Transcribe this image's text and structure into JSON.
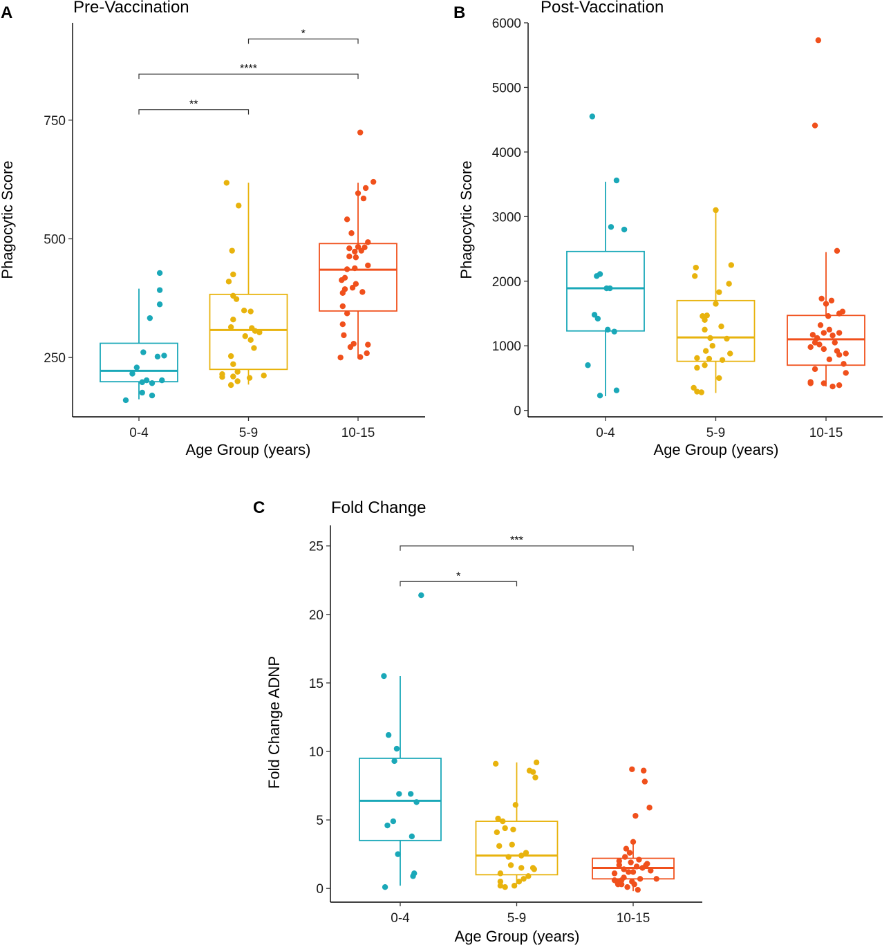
{
  "chart_data": [
    {
      "type": "boxplot",
      "panel": "A",
      "title": "Pre-Vaccination",
      "xlabel": "Age Group (years)",
      "ylabel": "Phagocytic Score",
      "categories": [
        "0-4",
        "5-9",
        "10-15"
      ],
      "ylim": [
        125,
        955
      ],
      "yticks": [
        250,
        500,
        750
      ],
      "colors": [
        "#1aa8b8",
        "#e8b30d",
        "#f0501c"
      ],
      "boxes": [
        {
          "min": 162,
          "q1": 199,
          "median": 222,
          "q3": 280,
          "max": 395
        },
        {
          "min": 193,
          "q1": 225,
          "median": 308,
          "q3": 383,
          "max": 618
        },
        {
          "min": 248,
          "q1": 348,
          "median": 435,
          "q3": 490,
          "max": 618
        }
      ],
      "points": [
        [
          {
            "x": 0.88,
            "y": 160
          },
          {
            "x": 0.94,
            "y": 216
          },
          {
            "x": 0.98,
            "y": 229
          },
          {
            "x": 1.04,
            "y": 261
          },
          {
            "x": 1.03,
            "y": 198
          },
          {
            "x": 1.03,
            "y": 176
          },
          {
            "x": 1.07,
            "y": 202
          },
          {
            "x": 1.1,
            "y": 333
          },
          {
            "x": 1.12,
            "y": 196
          },
          {
            "x": 1.12,
            "y": 170
          },
          {
            "x": 1.17,
            "y": 252
          },
          {
            "x": 1.19,
            "y": 362
          },
          {
            "x": 1.19,
            "y": 392
          },
          {
            "x": 1.19,
            "y": 428
          },
          {
            "x": 1.23,
            "y": 254
          },
          {
            "x": 1.21,
            "y": 202
          }
        ],
        [
          {
            "x": 1.8,
            "y": 618
          },
          {
            "x": 1.76,
            "y": 209
          },
          {
            "x": 1.76,
            "y": 215
          },
          {
            "x": 1.84,
            "y": 253
          },
          {
            "x": 1.84,
            "y": 314
          },
          {
            "x": 1.85,
            "y": 475
          },
          {
            "x": 1.86,
            "y": 425
          },
          {
            "x": 1.82,
            "y": 410
          },
          {
            "x": 1.86,
            "y": 380
          },
          {
            "x": 1.89,
            "y": 373
          },
          {
            "x": 1.86,
            "y": 330
          },
          {
            "x": 1.86,
            "y": 236
          },
          {
            "x": 1.9,
            "y": 220
          },
          {
            "x": 1.91,
            "y": 570
          },
          {
            "x": 1.86,
            "y": 210
          },
          {
            "x": 1.84,
            "y": 192
          },
          {
            "x": 1.9,
            "y": 200
          },
          {
            "x": 1.97,
            "y": 295
          },
          {
            "x": 2.02,
            "y": 347
          },
          {
            "x": 2.03,
            "y": 312
          },
          {
            "x": 2.05,
            "y": 270
          },
          {
            "x": 2.06,
            "y": 306
          },
          {
            "x": 2.1,
            "y": 303
          },
          {
            "x": 2.02,
            "y": 287
          },
          {
            "x": 2.01,
            "y": 207
          },
          {
            "x": 2.14,
            "y": 212
          },
          {
            "x": 1.96,
            "y": 349
          }
        ],
        [
          {
            "x": 3.02,
            "y": 724
          },
          {
            "x": 3.14,
            "y": 620
          },
          {
            "x": 3.07,
            "y": 607
          },
          {
            "x": 3.0,
            "y": 596
          },
          {
            "x": 3.05,
            "y": 585
          },
          {
            "x": 2.9,
            "y": 541
          },
          {
            "x": 2.92,
            "y": 480
          },
          {
            "x": 2.94,
            "y": 512
          },
          {
            "x": 2.97,
            "y": 473
          },
          {
            "x": 3.0,
            "y": 483
          },
          {
            "x": 3.03,
            "y": 475
          },
          {
            "x": 3.06,
            "y": 482
          },
          {
            "x": 3.09,
            "y": 493
          },
          {
            "x": 3.09,
            "y": 444
          },
          {
            "x": 2.98,
            "y": 461
          },
          {
            "x": 2.92,
            "y": 463
          },
          {
            "x": 2.85,
            "y": 413
          },
          {
            "x": 2.88,
            "y": 418
          },
          {
            "x": 2.9,
            "y": 436
          },
          {
            "x": 2.97,
            "y": 438
          },
          {
            "x": 2.86,
            "y": 386
          },
          {
            "x": 2.88,
            "y": 394
          },
          {
            "x": 2.95,
            "y": 397
          },
          {
            "x": 2.98,
            "y": 405
          },
          {
            "x": 3.04,
            "y": 388
          },
          {
            "x": 2.86,
            "y": 358
          },
          {
            "x": 2.9,
            "y": 343
          },
          {
            "x": 2.86,
            "y": 320
          },
          {
            "x": 2.87,
            "y": 297
          },
          {
            "x": 2.93,
            "y": 272
          },
          {
            "x": 2.96,
            "y": 279
          },
          {
            "x": 2.84,
            "y": 250
          },
          {
            "x": 3.02,
            "y": 251
          },
          {
            "x": 3.09,
            "y": 277
          },
          {
            "x": 3.08,
            "y": 259
          }
        ]
      ],
      "brackets": [
        {
          "from": "0-4",
          "to": "5-9",
          "label": "**",
          "y": 772
        },
        {
          "from": "0-4",
          "to": "10-15",
          "label": "****",
          "y": 847
        },
        {
          "from": "5-9",
          "to": "10-15",
          "label": "*",
          "y": 921
        }
      ]
    },
    {
      "type": "boxplot",
      "panel": "B",
      "title": "Post-Vaccination",
      "xlabel": "Age Group (years)",
      "ylabel": "Phagocytic Score",
      "categories": [
        "0-4",
        "5-9",
        "10-15"
      ],
      "ylim": [
        -100,
        6000
      ],
      "yticks": [
        0,
        1000,
        2000,
        3000,
        4000,
        5000,
        6000
      ],
      "colors": [
        "#1aa8b8",
        "#e8b30d",
        "#f0501c"
      ],
      "boxes": [
        {
          "min": 220,
          "q1": 1230,
          "median": 1890,
          "q3": 2460,
          "max": 3540
        },
        {
          "min": 270,
          "q1": 760,
          "median": 1130,
          "q3": 1700,
          "max": 3100
        },
        {
          "min": 370,
          "q1": 700,
          "median": 1100,
          "q3": 1470,
          "max": 2450
        }
      ],
      "points": [
        [
          {
            "x": 0.84,
            "y": 700
          },
          {
            "x": 0.88,
            "y": 4550
          },
          {
            "x": 0.92,
            "y": 2080
          },
          {
            "x": 0.95,
            "y": 2110
          },
          {
            "x": 0.9,
            "y": 1480
          },
          {
            "x": 0.93,
            "y": 1420
          },
          {
            "x": 0.95,
            "y": 230
          },
          {
            "x": 1.01,
            "y": 1890
          },
          {
            "x": 1.04,
            "y": 1890
          },
          {
            "x": 1.02,
            "y": 1250
          },
          {
            "x": 1.05,
            "y": 2840
          },
          {
            "x": 1.08,
            "y": 1220
          },
          {
            "x": 1.1,
            "y": 3560
          },
          {
            "x": 1.1,
            "y": 310
          },
          {
            "x": 1.17,
            "y": 2800
          }
        ],
        [
          {
            "x": 1.82,
            "y": 2210
          },
          {
            "x": 1.81,
            "y": 2080
          },
          {
            "x": 1.83,
            "y": 810
          },
          {
            "x": 1.8,
            "y": 350
          },
          {
            "x": 1.83,
            "y": 290
          },
          {
            "x": 1.87,
            "y": 280
          },
          {
            "x": 1.83,
            "y": 660
          },
          {
            "x": 1.88,
            "y": 1460
          },
          {
            "x": 1.92,
            "y": 1470
          },
          {
            "x": 1.9,
            "y": 1250
          },
          {
            "x": 1.9,
            "y": 1400
          },
          {
            "x": 1.91,
            "y": 920
          },
          {
            "x": 1.9,
            "y": 700
          },
          {
            "x": 1.95,
            "y": 1120
          },
          {
            "x": 1.97,
            "y": 1000
          },
          {
            "x": 1.94,
            "y": 800
          },
          {
            "x": 2.0,
            "y": 1650
          },
          {
            "x": 2.03,
            "y": 1830
          },
          {
            "x": 2.05,
            "y": 1300
          },
          {
            "x": 2.1,
            "y": 1110
          },
          {
            "x": 2.14,
            "y": 2250
          },
          {
            "x": 2.12,
            "y": 1960
          },
          {
            "x": 2.13,
            "y": 880
          },
          {
            "x": 2.03,
            "y": 500
          },
          {
            "x": 2.06,
            "y": 780
          },
          {
            "x": 2.0,
            "y": 3100
          }
        ],
        [
          {
            "x": 2.86,
            "y": 420
          },
          {
            "x": 2.86,
            "y": 980
          },
          {
            "x": 2.88,
            "y": 1170
          },
          {
            "x": 2.9,
            "y": 1050
          },
          {
            "x": 2.92,
            "y": 1120
          },
          {
            "x": 2.86,
            "y": 440
          },
          {
            "x": 2.9,
            "y": 640
          },
          {
            "x": 2.94,
            "y": 1020
          },
          {
            "x": 2.95,
            "y": 1320
          },
          {
            "x": 2.96,
            "y": 1730
          },
          {
            "x": 2.98,
            "y": 1200
          },
          {
            "x": 2.98,
            "y": 950
          },
          {
            "x": 2.98,
            "y": 420
          },
          {
            "x": 3.0,
            "y": 1650
          },
          {
            "x": 3.02,
            "y": 1460
          },
          {
            "x": 3.03,
            "y": 1250
          },
          {
            "x": 3.03,
            "y": 790
          },
          {
            "x": 3.05,
            "y": 1700
          },
          {
            "x": 3.06,
            "y": 1160
          },
          {
            "x": 3.06,
            "y": 370
          },
          {
            "x": 3.08,
            "y": 1050
          },
          {
            "x": 3.1,
            "y": 920
          },
          {
            "x": 3.12,
            "y": 860
          },
          {
            "x": 3.12,
            "y": 1500
          },
          {
            "x": 3.12,
            "y": 1200
          },
          {
            "x": 3.15,
            "y": 1530
          },
          {
            "x": 3.16,
            "y": 720
          },
          {
            "x": 3.18,
            "y": 880
          },
          {
            "x": 3.18,
            "y": 580
          },
          {
            "x": 3.12,
            "y": 390
          },
          {
            "x": 3.1,
            "y": 2470
          },
          {
            "x": 2.9,
            "y": 4410
          },
          {
            "x": 2.93,
            "y": 5730
          }
        ]
      ],
      "brackets": []
    },
    {
      "type": "boxplot",
      "panel": "C",
      "title": "Fold Change",
      "xlabel": "Age Group (years)",
      "ylabel": "Fold Change ADNP",
      "categories": [
        "0-4",
        "5-9",
        "10-15"
      ],
      "ylim": [
        -1,
        26.5
      ],
      "yticks": [
        0,
        5,
        10,
        15,
        20,
        25
      ],
      "colors": [
        "#1aa8b8",
        "#e8b30d",
        "#f0501c"
      ],
      "boxes": [
        {
          "min": 0.2,
          "q1": 3.5,
          "median": 6.4,
          "q3": 9.5,
          "max": 15.5
        },
        {
          "min": 0.3,
          "q1": 1.0,
          "median": 2.4,
          "q3": 4.9,
          "max": 9.2
        },
        {
          "min": -0.2,
          "q1": 0.7,
          "median": 1.5,
          "q3": 2.2,
          "max": 3.4
        }
      ],
      "points": [
        [
          {
            "x": 0.87,
            "y": 0.1
          },
          {
            "x": 0.89,
            "y": 4.6
          },
          {
            "x": 0.9,
            "y": 11.2
          },
          {
            "x": 0.86,
            "y": 15.5
          },
          {
            "x": 0.94,
            "y": 4.9
          },
          {
            "x": 0.95,
            "y": 9.3
          },
          {
            "x": 0.97,
            "y": 10.2
          },
          {
            "x": 0.98,
            "y": 2.5
          },
          {
            "x": 0.99,
            "y": 6.9
          },
          {
            "x": 1.09,
            "y": 6.9
          },
          {
            "x": 1.1,
            "y": 3.8
          },
          {
            "x": 1.12,
            "y": 1.1
          },
          {
            "x": 1.11,
            "y": 0.9
          },
          {
            "x": 1.14,
            "y": 6.3
          },
          {
            "x": 1.18,
            "y": 21.4
          }
        ],
        [
          {
            "x": 1.82,
            "y": 9.1
          },
          {
            "x": 1.83,
            "y": 4.1
          },
          {
            "x": 1.84,
            "y": 5.1
          },
          {
            "x": 1.85,
            "y": 3.1
          },
          {
            "x": 1.86,
            "y": 1.1
          },
          {
            "x": 1.86,
            "y": 0.5
          },
          {
            "x": 1.86,
            "y": 0.2
          },
          {
            "x": 1.88,
            "y": 4.9
          },
          {
            "x": 1.9,
            "y": 4.4
          },
          {
            "x": 1.9,
            "y": 0.1
          },
          {
            "x": 1.93,
            "y": 2.3
          },
          {
            "x": 1.95,
            "y": 1.7
          },
          {
            "x": 1.96,
            "y": 3.2
          },
          {
            "x": 1.97,
            "y": 4.3
          },
          {
            "x": 1.99,
            "y": 6.1
          },
          {
            "x": 1.98,
            "y": 0.2
          },
          {
            "x": 2.02,
            "y": 0.5
          },
          {
            "x": 2.04,
            "y": 2.4
          },
          {
            "x": 2.04,
            "y": 1.5
          },
          {
            "x": 2.06,
            "y": 0.7
          },
          {
            "x": 2.08,
            "y": 2.6
          },
          {
            "x": 2.1,
            "y": 0.9
          },
          {
            "x": 2.11,
            "y": 8.6
          },
          {
            "x": 2.14,
            "y": 8.5
          },
          {
            "x": 2.16,
            "y": 8.1
          },
          {
            "x": 2.17,
            "y": 9.2
          },
          {
            "x": 2.14,
            "y": 1.5
          },
          {
            "x": 2.15,
            "y": 1.4
          }
        ],
        [
          {
            "x": 2.84,
            "y": 1.1
          },
          {
            "x": 2.84,
            "y": 0.6
          },
          {
            "x": 2.86,
            "y": 0.5
          },
          {
            "x": 2.87,
            "y": 0.3
          },
          {
            "x": 2.88,
            "y": 1.7
          },
          {
            "x": 2.88,
            "y": 2.0
          },
          {
            "x": 2.9,
            "y": 0.6
          },
          {
            "x": 2.9,
            "y": 0.3
          },
          {
            "x": 2.92,
            "y": 0.8
          },
          {
            "x": 2.92,
            "y": 1.4
          },
          {
            "x": 2.93,
            "y": 2.3
          },
          {
            "x": 2.94,
            "y": 2.9
          },
          {
            "x": 2.95,
            "y": 0.1
          },
          {
            "x": 2.96,
            "y": 1.2
          },
          {
            "x": 2.97,
            "y": 2.6
          },
          {
            "x": 2.98,
            "y": 1.9
          },
          {
            "x": 2.99,
            "y": 8.7
          },
          {
            "x": 2.99,
            "y": 0.5
          },
          {
            "x": 3.0,
            "y": 1.2
          },
          {
            "x": 3.01,
            "y": 0.3
          },
          {
            "x": 3.02,
            "y": 5.3
          },
          {
            "x": 3.03,
            "y": 1.6
          },
          {
            "x": 3.04,
            "y": -0.1
          },
          {
            "x": 3.05,
            "y": 2.1
          },
          {
            "x": 3.06,
            "y": 0.7
          },
          {
            "x": 3.08,
            "y": 1.5
          },
          {
            "x": 3.09,
            "y": 8.6
          },
          {
            "x": 3.1,
            "y": 7.8
          },
          {
            "x": 3.11,
            "y": 1.7
          },
          {
            "x": 3.12,
            "y": 1.8
          },
          {
            "x": 3.14,
            "y": 5.9
          },
          {
            "x": 3.15,
            "y": 1.3
          },
          {
            "x": 3.2,
            "y": 0.7
          },
          {
            "x": 3.0,
            "y": 3.4
          }
        ]
      ],
      "brackets": [
        {
          "from": "0-4",
          "to": "5-9",
          "label": "*",
          "y": 22.4
        },
        {
          "from": "0-4",
          "to": "10-15",
          "label": "***",
          "y": 25.0
        }
      ]
    }
  ]
}
